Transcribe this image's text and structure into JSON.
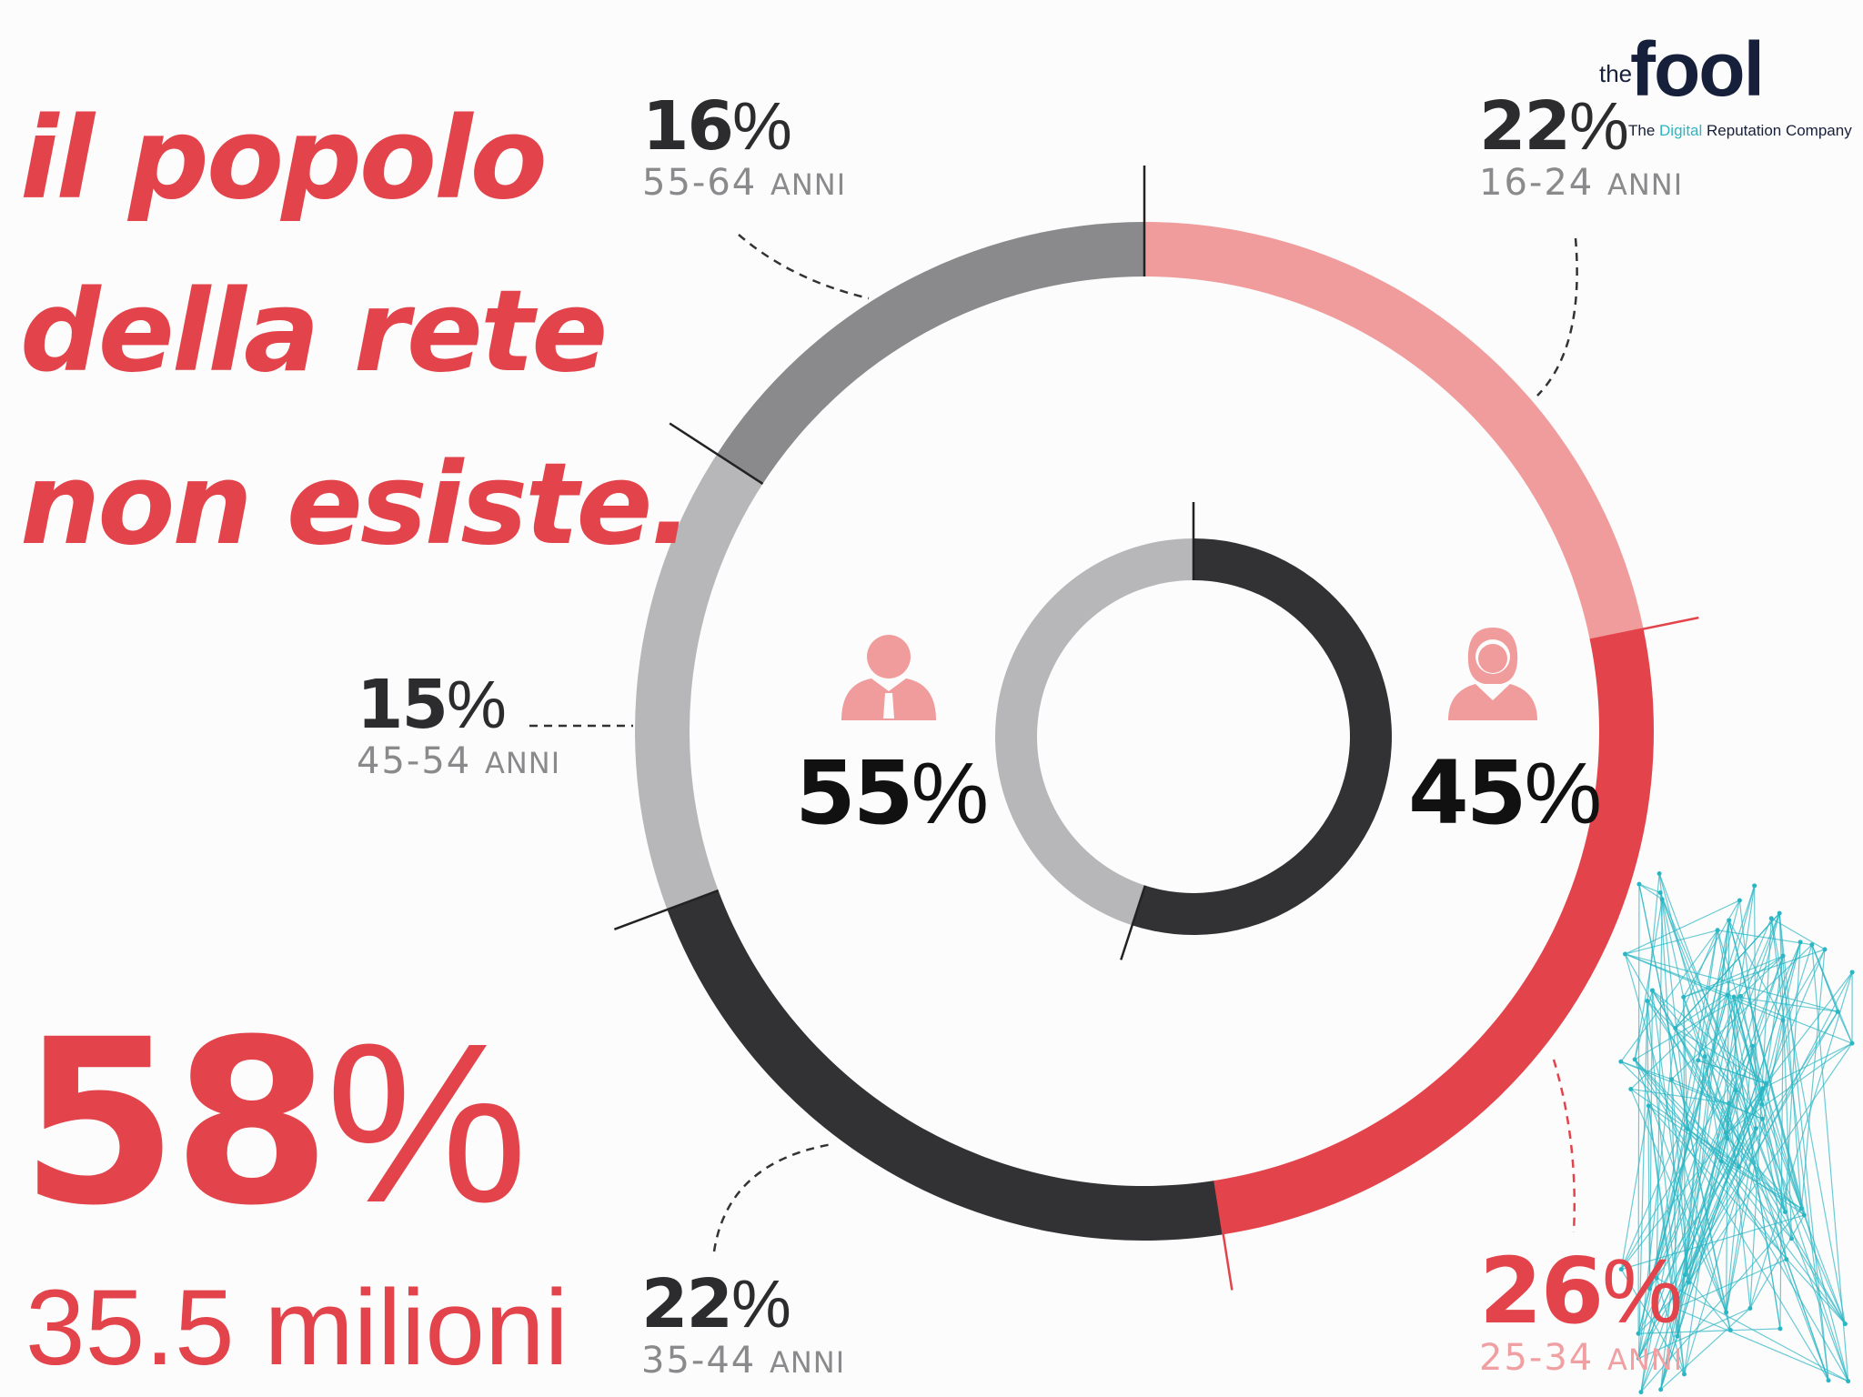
{
  "title": {
    "line1": "il popolo",
    "line2": "della rete",
    "line3": "non esiste."
  },
  "headline": {
    "percent_number": "58",
    "percent_sign": "%",
    "subtitle": "35.5 milioni"
  },
  "logo": {
    "the": "the",
    "name": "fool",
    "tagline_part1": "The ",
    "tagline_highlight": "Digital",
    "tagline_part2": " Reputation Company"
  },
  "colors": {
    "red": "#e3434a",
    "pink": "#f09c9c",
    "dark": "#323235",
    "gray": "#8a898c",
    "lightgray": "#b7b6b9",
    "network": "#2bb6c4"
  },
  "icons": {
    "male": "man-silhouette-icon",
    "female": "woman-silhouette-icon"
  },
  "chart_data": [
    {
      "type": "donut",
      "categories": [
        "16-24 ANNI",
        "25-34 ANNI",
        "35-44 ANNI",
        "45-54 ANNI",
        "55-64 ANNI"
      ],
      "values": [
        22,
        26,
        22,
        15,
        16
      ],
      "labels": [
        {
          "pct": "22",
          "age": "16-24",
          "unit": "ANNI"
        },
        {
          "pct": "26",
          "age": "25-34",
          "unit": "ANNI"
        },
        {
          "pct": "22",
          "age": "35-44",
          "unit": "ANNI"
        },
        {
          "pct": "15",
          "age": "45-54",
          "unit": "ANNI"
        },
        {
          "pct": "16",
          "age": "55-64",
          "unit": "ANNI"
        }
      ],
      "colors": [
        "#f09c9c",
        "#e3434a",
        "#323235",
        "#b7b6b9",
        "#8a898c"
      ]
    },
    {
      "type": "donut",
      "categories": [
        "uomini",
        "donne"
      ],
      "values": [
        55,
        45
      ],
      "labels": [
        {
          "pct": "55"
        },
        {
          "pct": "45"
        }
      ],
      "colors": [
        "#323235",
        "#b7b6b9"
      ]
    }
  ],
  "percent_sign": "%"
}
